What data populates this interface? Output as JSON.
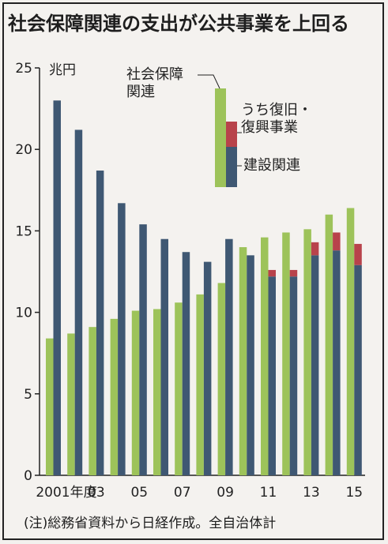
{
  "title": "社会保障関連の支出が公共事業を上回る",
  "footnote": "(注)総務省資料から日経作成。全自治体計",
  "colors": {
    "social_security": "#9dc35a",
    "construction": "#3f5873",
    "reconstruction": "#b8434b"
  },
  "chart_data": {
    "type": "bar",
    "title": "社会保障関連の支出が公共事業を上回る",
    "ylabel": "兆円",
    "ylim": [
      0,
      25
    ],
    "yticks": [
      0,
      5,
      10,
      15,
      20,
      25
    ],
    "categories": [
      "2001年度",
      "02",
      "03",
      "04",
      "05",
      "06",
      "07",
      "08",
      "09",
      "10",
      "11",
      "12",
      "13",
      "14",
      "15"
    ],
    "xtick_labels": [
      "2001年度",
      "",
      "03",
      "",
      "05",
      "",
      "07",
      "",
      "09",
      "",
      "11",
      "",
      "13",
      "",
      "15"
    ],
    "series": [
      {
        "name": "社会保障関連",
        "values": [
          8.4,
          8.7,
          9.1,
          9.6,
          10.1,
          10.2,
          10.6,
          11.1,
          11.8,
          14.0,
          14.6,
          14.9,
          15.1,
          16.0,
          16.4
        ]
      },
      {
        "name": "建設関連",
        "values": [
          23.0,
          21.2,
          18.7,
          16.7,
          15.4,
          14.5,
          13.7,
          13.1,
          14.5,
          13.5,
          12.2,
          12.2,
          13.5,
          13.8,
          12.9
        ]
      },
      {
        "name": "うち復旧・復興事業",
        "values": [
          0,
          0,
          0,
          0,
          0,
          0,
          0,
          0,
          0,
          0,
          0.4,
          0.4,
          0.8,
          1.1,
          1.3
        ]
      }
    ],
    "legend": {
      "social_security": "社会保障\n関連",
      "reconstruction": "うち復旧・\n復興事業",
      "construction": "建設関連"
    },
    "legend_placement": "top-right",
    "grid": false
  }
}
